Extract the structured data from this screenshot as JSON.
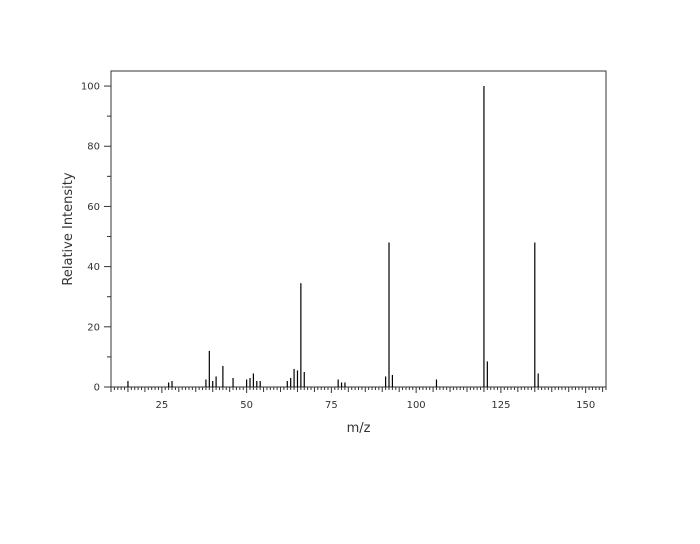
{
  "chart_data": {
    "type": "bar",
    "title": "",
    "xlabel": "m/z",
    "ylabel": "Relative Intensity",
    "xlim": [
      10,
      156
    ],
    "ylim": [
      0,
      105
    ],
    "x_ticks": [
      25,
      50,
      75,
      100,
      125,
      150
    ],
    "y_ticks": [
      0,
      20,
      40,
      60,
      80,
      100
    ],
    "grid": false,
    "legend": "none",
    "colors": {
      "bar": "#000000",
      "axis": "#333333"
    },
    "peaks": [
      {
        "mz": 15,
        "intensity": 2
      },
      {
        "mz": 27,
        "intensity": 1.5
      },
      {
        "mz": 28,
        "intensity": 2
      },
      {
        "mz": 38,
        "intensity": 2.5
      },
      {
        "mz": 39,
        "intensity": 12
      },
      {
        "mz": 40,
        "intensity": 2
      },
      {
        "mz": 41,
        "intensity": 3.5
      },
      {
        "mz": 43,
        "intensity": 7
      },
      {
        "mz": 46,
        "intensity": 3
      },
      {
        "mz": 50,
        "intensity": 2.5
      },
      {
        "mz": 51,
        "intensity": 3
      },
      {
        "mz": 52,
        "intensity": 4.5
      },
      {
        "mz": 53,
        "intensity": 2
      },
      {
        "mz": 54,
        "intensity": 2
      },
      {
        "mz": 62,
        "intensity": 2
      },
      {
        "mz": 63,
        "intensity": 3
      },
      {
        "mz": 64,
        "intensity": 6
      },
      {
        "mz": 65,
        "intensity": 5.5
      },
      {
        "mz": 66,
        "intensity": 34.5
      },
      {
        "mz": 67,
        "intensity": 5
      },
      {
        "mz": 77,
        "intensity": 2.5
      },
      {
        "mz": 78,
        "intensity": 1.5
      },
      {
        "mz": 79,
        "intensity": 1.5
      },
      {
        "mz": 91,
        "intensity": 3.5
      },
      {
        "mz": 92,
        "intensity": 48
      },
      {
        "mz": 93,
        "intensity": 4
      },
      {
        "mz": 106,
        "intensity": 2.5
      },
      {
        "mz": 120,
        "intensity": 100
      },
      {
        "mz": 121,
        "intensity": 8.5
      },
      {
        "mz": 135,
        "intensity": 48
      },
      {
        "mz": 136,
        "intensity": 4.5
      }
    ]
  }
}
